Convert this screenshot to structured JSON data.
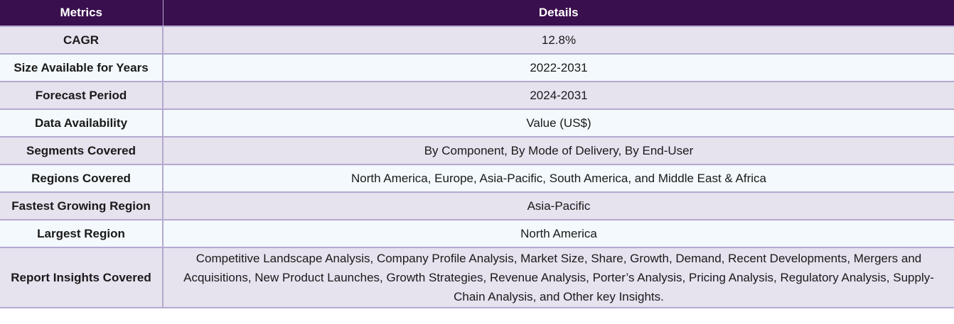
{
  "header": {
    "col1": "Metrics",
    "col2": "Details"
  },
  "rows": [
    {
      "metric": "CAGR",
      "detail": "12.8%"
    },
    {
      "metric": "Size Available for Years",
      "detail": "2022-2031"
    },
    {
      "metric": "Forecast Period",
      "detail": "2024-2031"
    },
    {
      "metric": "Data Availability",
      "detail": "Value (US$)"
    },
    {
      "metric": "Segments Covered",
      "detail": "By Component, By Mode of Delivery, By End-User"
    },
    {
      "metric": "Regions Covered",
      "detail": "North America, Europe, Asia-Pacific, South America, and Middle East & Africa"
    },
    {
      "metric": "Fastest Growing Region",
      "detail": "Asia-Pacific"
    },
    {
      "metric": "Largest Region",
      "detail": "North America"
    },
    {
      "metric": "Report Insights Covered",
      "detail": "Competitive Landscape Analysis, Company Profile Analysis, Market Size, Share, Growth, Demand, Recent Developments, Mergers and Acquisitions, New Product Launches, Growth Strategies, Revenue Analysis, Porter’s Analysis, Pricing Analysis, Regulatory Analysis, Supply-Chain Analysis, and Other key Insights."
    }
  ],
  "colors": {
    "header_bg": "#3a0f4d",
    "row_odd_bg": "#e6e2ee",
    "row_even_bg": "#f3f9fc",
    "border": "#b5a8cf"
  }
}
